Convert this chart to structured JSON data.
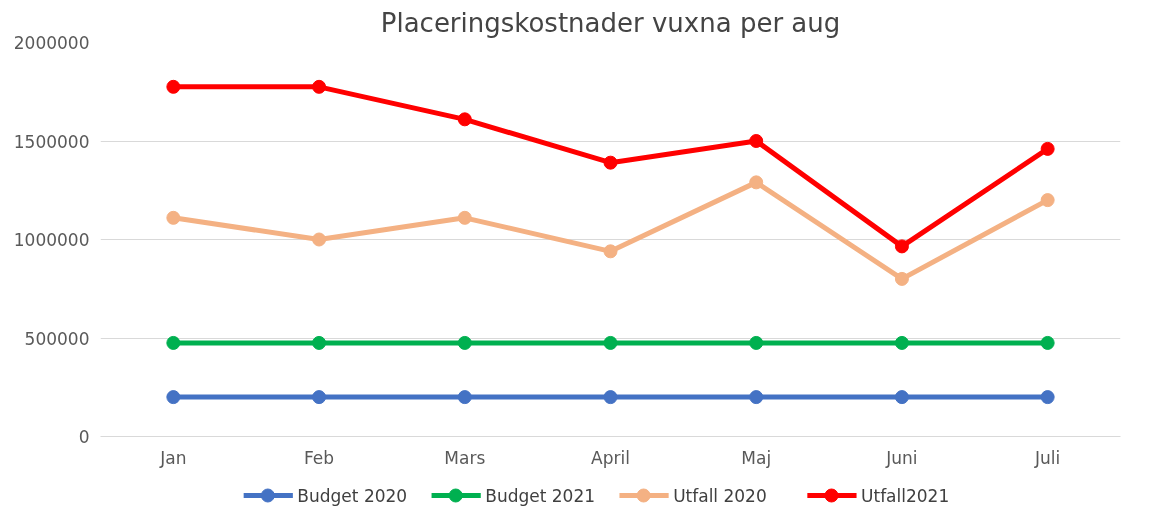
{
  "chart_data": {
    "type": "line",
    "title": "Placeringskostnader vuxna per aug",
    "categories": [
      "Jan",
      "Feb",
      "Mars",
      "April",
      "Maj",
      "Juni",
      "Juli"
    ],
    "series": [
      {
        "name": "Budget 2020",
        "color": "#4472c4",
        "values": [
          200000,
          200000,
          200000,
          200000,
          200000,
          200000,
          200000
        ]
      },
      {
        "name": "Budget 2021",
        "color": "#00b050",
        "values": [
          475000,
          475000,
          475000,
          475000,
          475000,
          475000,
          475000
        ]
      },
      {
        "name": "Utfall 2020",
        "color": "#f4b183",
        "values": [
          1110000,
          1000000,
          1110000,
          940000,
          1290000,
          800000,
          1200000
        ]
      },
      {
        "name": "Utfall2021",
        "color": "#ff0000",
        "values": [
          1775000,
          1775000,
          1610000,
          1390000,
          1500000,
          965000,
          1460000
        ]
      }
    ],
    "ylim": [
      0,
      2000000
    ],
    "yticks": [
      0,
      500000,
      1000000,
      1500000,
      2000000
    ],
    "grid": "y",
    "legend": "bottom",
    "marker": "circle",
    "line_style": "solid"
  }
}
